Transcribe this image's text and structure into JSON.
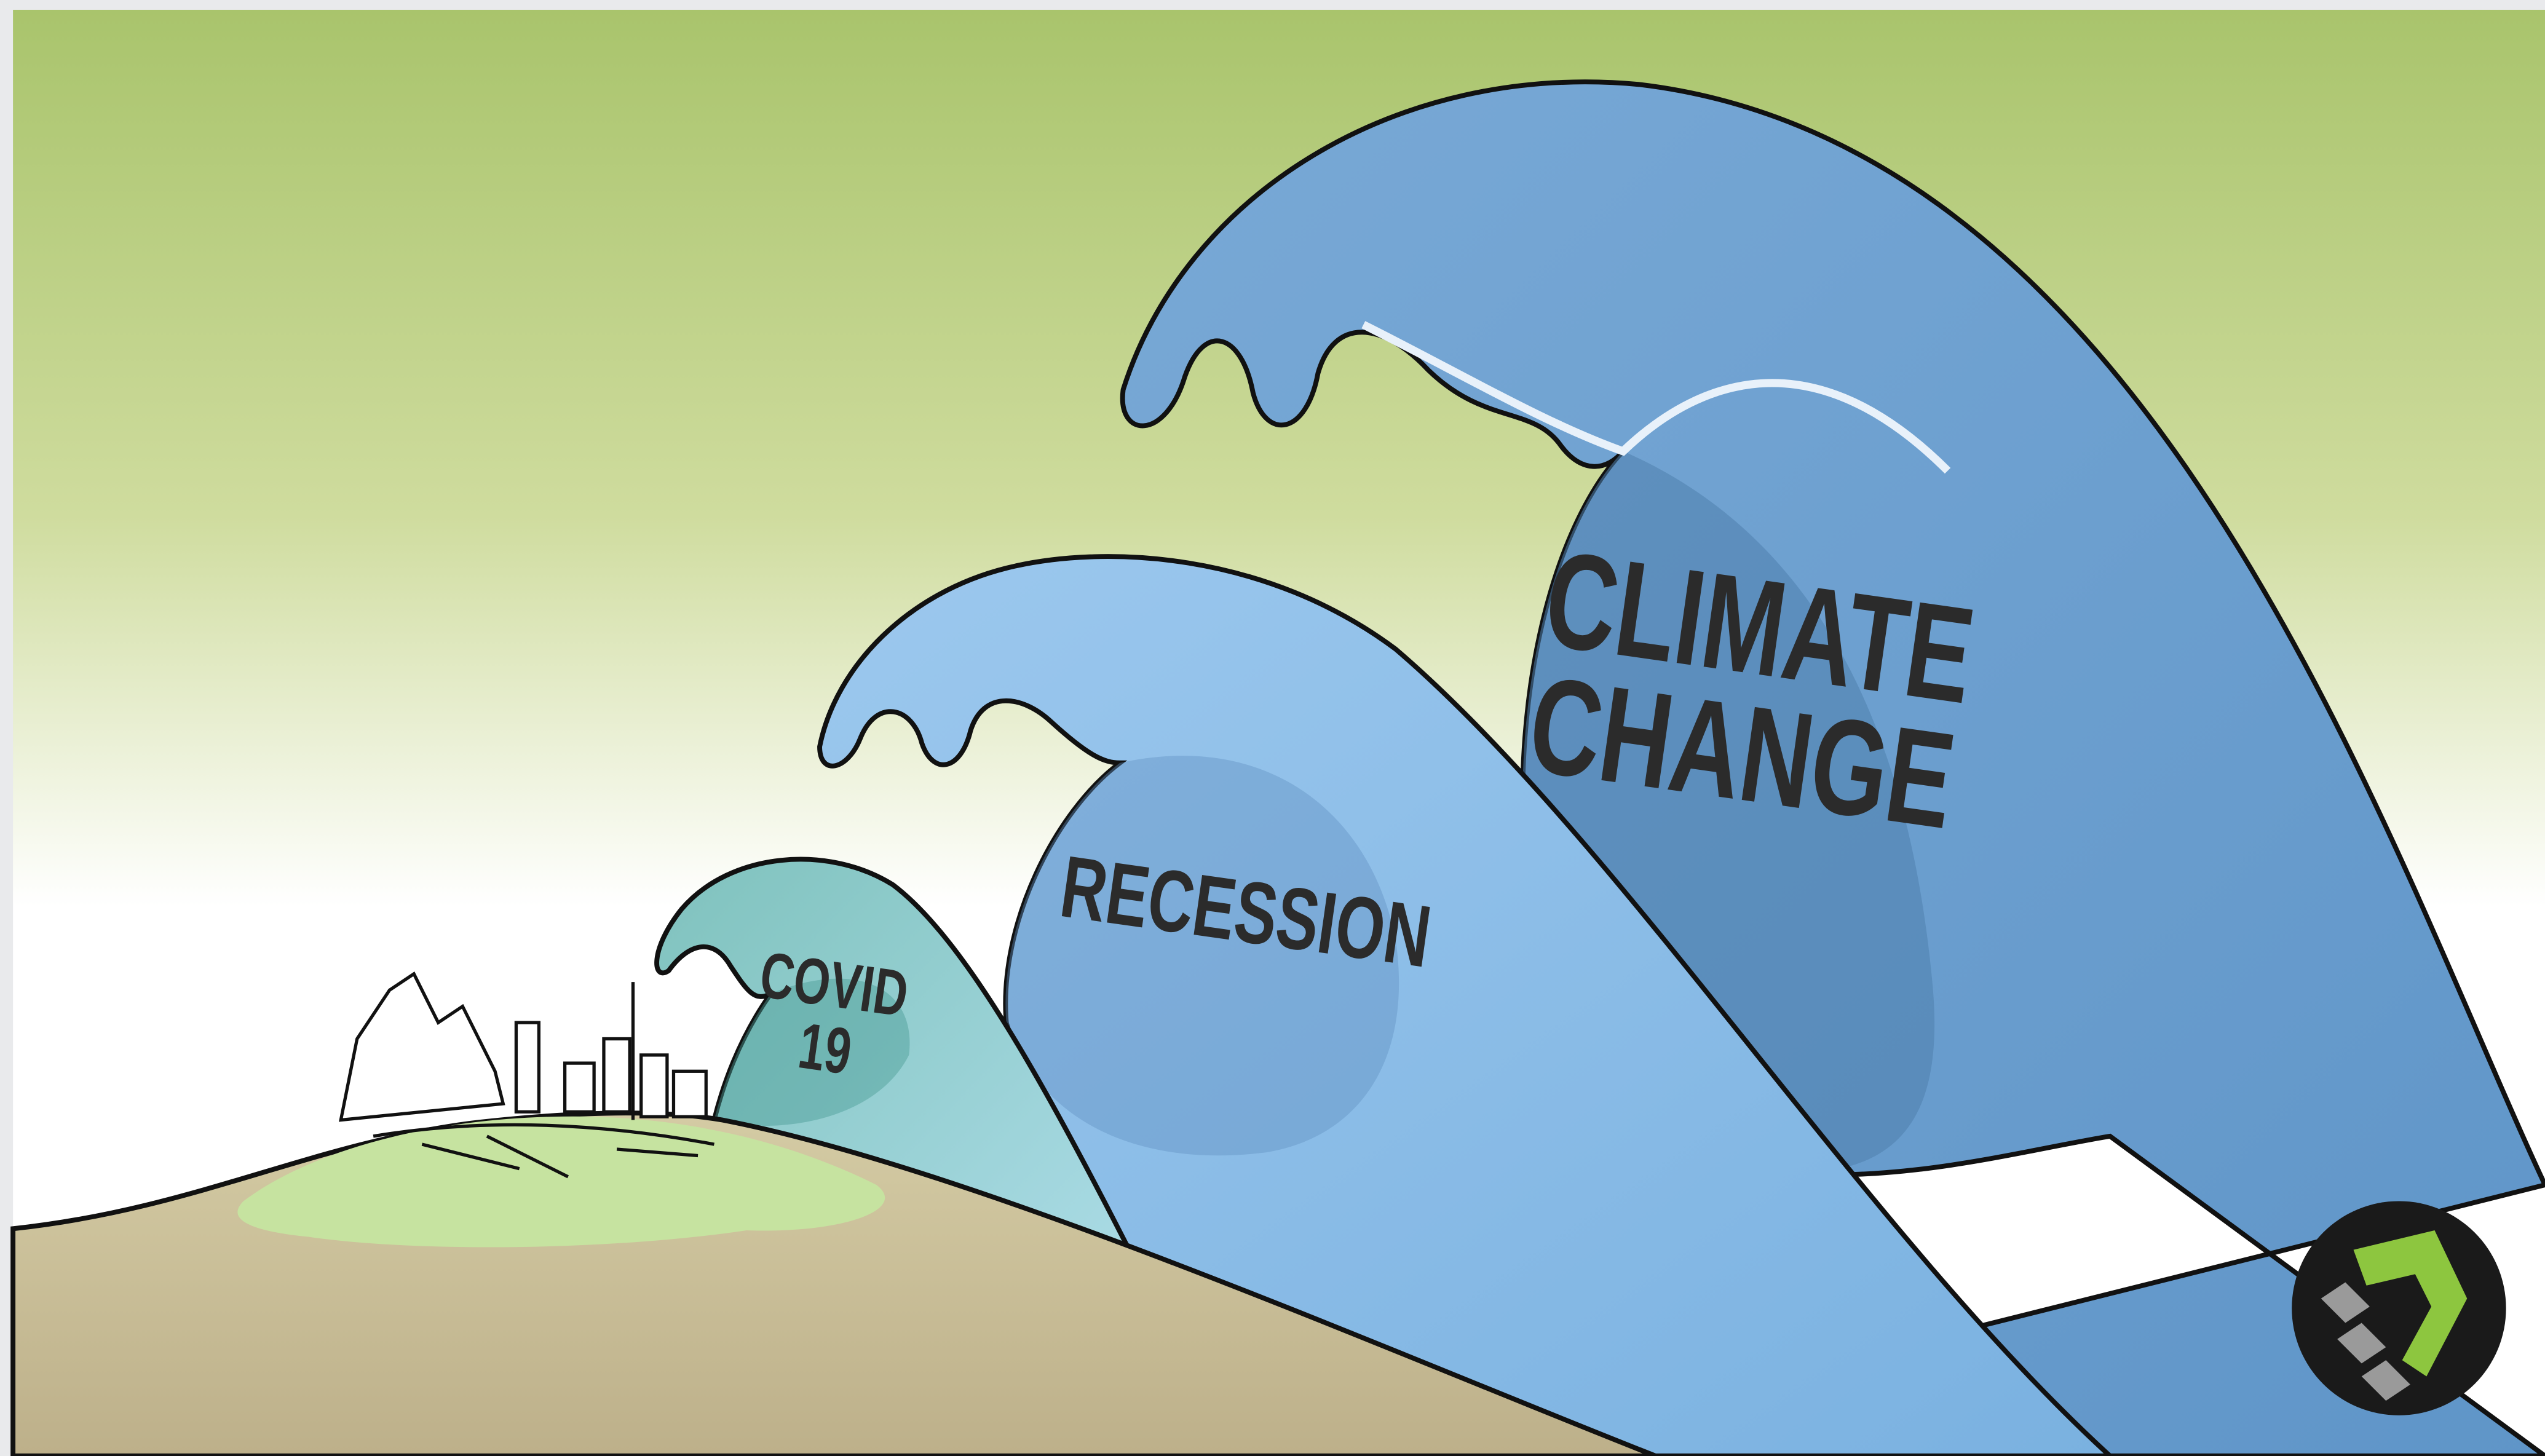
{
  "waves": [
    {
      "label_lines": [
        "COVID",
        "19"
      ]
    },
    {
      "label_lines": [
        "RECESSION"
      ]
    },
    {
      "label_lines": [
        "CLIMATE",
        "CHANGE"
      ]
    }
  ]
}
